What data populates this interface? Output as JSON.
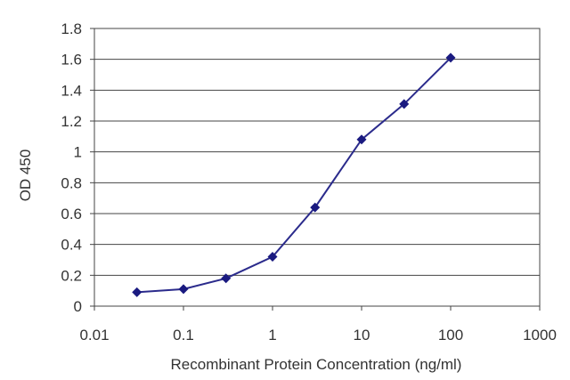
{
  "chart_data": {
    "type": "line",
    "title": "",
    "xlabel": "Recombinant Protein Concentration (ng/ml)",
    "ylabel": "OD 450",
    "xscale": "log",
    "xlim": [
      0.01,
      1000
    ],
    "ylim": [
      0,
      1.8
    ],
    "x_ticks": [
      "0.01",
      "0.1",
      "1",
      "10",
      "100",
      "1000"
    ],
    "y_ticks": [
      "0",
      "0.2",
      "0.4",
      "0.6",
      "0.8",
      "1",
      "1.2",
      "1.4",
      "1.6",
      "1.8"
    ],
    "grid": "horizontal",
    "legend": "none",
    "series": [
      {
        "x": [
          0.03,
          0.1,
          0.3,
          1,
          3,
          10,
          30,
          100
        ],
        "y": [
          0.09,
          0.11,
          0.18,
          0.32,
          0.64,
          1.08,
          1.31,
          1.61
        ]
      }
    ],
    "colors": {
      "line": "#2b2b8c",
      "marker": "#1a1a80",
      "grid": "#444444",
      "axis": "#444444"
    }
  }
}
